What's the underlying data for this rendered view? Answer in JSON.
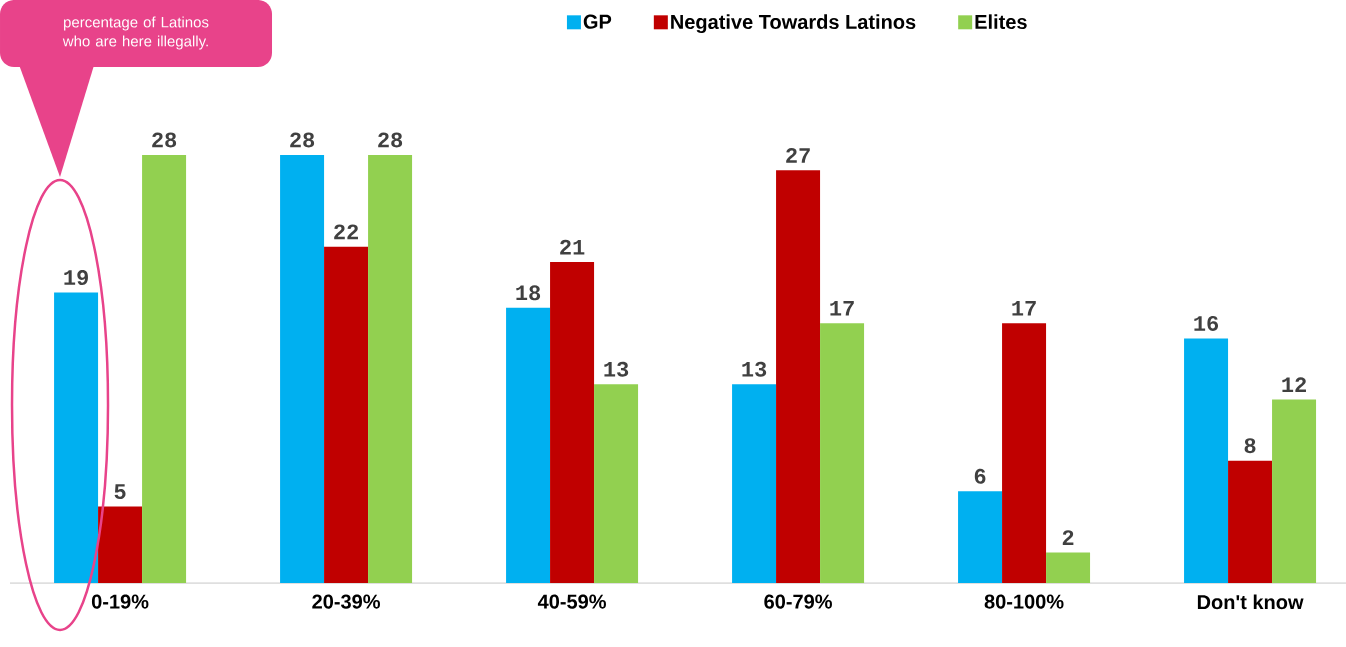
{
  "chart_data": {
    "type": "bar",
    "categories": [
      "0-19%",
      "20-39%",
      "40-59%",
      "60-79%",
      "80-100%",
      "Don't know"
    ],
    "series": [
      {
        "name": "GP",
        "color": "#00b0f0",
        "values": [
          19,
          28,
          18,
          13,
          6,
          16
        ]
      },
      {
        "name": "Negative Towards Latinos",
        "color": "#c00000",
        "values": [
          5,
          22,
          21,
          27,
          17,
          8
        ]
      },
      {
        "name": "Elites",
        "color": "#92d050",
        "values": [
          28,
          28,
          13,
          17,
          2,
          12
        ]
      }
    ],
    "data_labels": true,
    "legend": "top",
    "annotations": [
      "percentage of Latinos who are here illegally."
    ]
  }
}
